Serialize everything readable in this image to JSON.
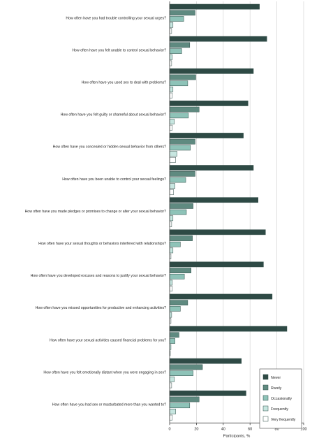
{
  "chart_data": {
    "type": "bar",
    "orientation": "horizontal",
    "categories": [
      "How often have you had trouble controlling your sexual urges?",
      "How often have you felt unable to control sexual behavior?",
      "How often have you used sex to deal with problems?",
      "How often have you felt guilty or shameful about sexual behavior?",
      "How often have you concealed or hidden sexual behavior from others?",
      "How often have you been unable to control your sexual feelings?",
      "How often have you made pledges or promises to change or alter your sexual behavior?",
      "How often have your sexual thoughts or behaviors interfered with relationships?",
      "How often have you developed excuses and reasons to justify your sexual behavior?",
      "How often have you missed opportunities for productive and enhancing activities?",
      "How often have your sexual activities caused financial problems for you?",
      "How often have you felt emotionally distant when you were engaging in sex?",
      "How often have you had sex or masturbated more than you wanted to?"
    ],
    "series": [
      {
        "name": "Never",
        "color": "#2e4a45",
        "values": [
          67.0,
          72.5,
          62.5,
          58.5,
          55.0,
          62.5,
          66.0,
          71.5,
          70.0,
          76.5,
          87.5,
          53.5,
          57.0
        ]
      },
      {
        "name": "Rarely",
        "color": "#5f8a80",
        "values": [
          19.0,
          15.0,
          19.5,
          22.0,
          19.0,
          19.0,
          17.5,
          17.0,
          16.0,
          13.5,
          7.0,
          24.5,
          22.0
        ]
      },
      {
        "name": "Occasionally",
        "color": "#8ec3b8",
        "values": [
          10.5,
          9.0,
          13.5,
          14.0,
          15.5,
          12.0,
          12.5,
          8.0,
          11.0,
          8.0,
          4.0,
          17.5,
          15.0
        ]
      },
      {
        "name": "Frequently",
        "color": "#c7e6e0",
        "values": [
          2.5,
          2.0,
          2.5,
          3.5,
          5.5,
          4.0,
          2.5,
          2.5,
          2.0,
          1.5,
          1.0,
          3.5,
          4.5
        ]
      },
      {
        "name": "Very frequently",
        "color": "#ffffff",
        "values": [
          1.5,
          1.5,
          2.0,
          2.0,
          4.5,
          3.0,
          1.5,
          1.0,
          2.0,
          1.0,
          0.5,
          1.5,
          2.0
        ]
      }
    ],
    "xlabel": "Participants, %",
    "ylabel": "",
    "xlim": [
      0,
      100
    ],
    "xticks": [
      0,
      20,
      40,
      60,
      80,
      100
    ],
    "grid": true,
    "legend_position": "bottom-right"
  }
}
